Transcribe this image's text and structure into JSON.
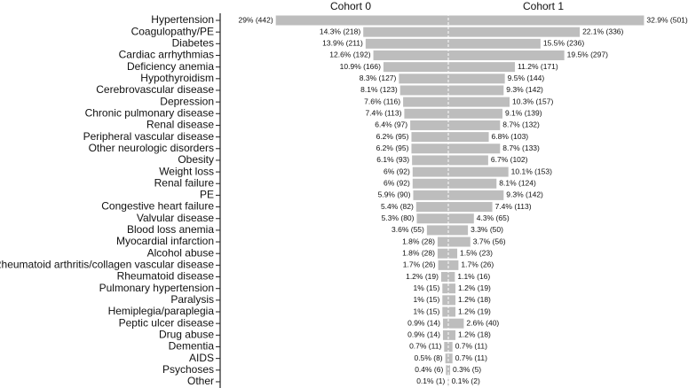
{
  "chart_data": {
    "type": "butterfly",
    "categories": [
      "Hypertension",
      "Coagulopathy/PE",
      "Diabetes",
      "Cardiac arrhythmias",
      "Deficiency anemia",
      "Hypothyroidism",
      "Cerebrovascular disease",
      "Depression",
      "Chronic pulmonary disease",
      "Renal disease",
      "Peripheral vascular disease",
      "Other neurologic disorders",
      "Obesity",
      "Weight loss",
      "Renal failure",
      "PE",
      "Congestive heart failure",
      "Valvular disease",
      "Blood loss anemia",
      "Myocardial infarction",
      "Alcohol abuse",
      "Rheumatoid arthritis/collagen vascular disease",
      "Rheumatoid disease",
      "Pulmonary hypertension",
      "Paralysis",
      "Hemiplegia/paraplegia",
      "Peptic ulcer disease",
      "Drug abuse",
      "Dementia",
      "AIDS",
      "Psychoses",
      "Other"
    ],
    "series": [
      {
        "name": "Cohort 0",
        "color": "#bdbdbd",
        "values": [
          29,
          14.3,
          13.9,
          12.6,
          10.9,
          8.3,
          8.1,
          7.6,
          7.4,
          6.4,
          6.2,
          6.2,
          6.1,
          6,
          6,
          5.9,
          5.4,
          5.3,
          3.6,
          1.8,
          1.8,
          1.7,
          1.2,
          1,
          1,
          1,
          0.9,
          0.9,
          0.7,
          0.5,
          0.4,
          0.1
        ],
        "value_labels": [
          "29% (442)",
          "14.3% (218)",
          "13.9% (211)",
          "12.6% (192)",
          "10.9% (166)",
          "8.3% (127)",
          "8.1% (123)",
          "7.6% (116)",
          "7.4% (113)",
          "6.4% (97)",
          "6.2% (95)",
          "6.2% (95)",
          "6.1% (93)",
          "6% (92)",
          "6% (92)",
          "5.9% (90)",
          "5.4% (82)",
          "5.3% (80)",
          "3.6% (55)",
          "1.8% (28)",
          "1.8% (28)",
          "1.7% (26)",
          "1.2% (19)",
          "1% (15)",
          "1% (15)",
          "1% (15)",
          "0.9% (14)",
          "0.9% (14)",
          "0.7% (11)",
          "0.5% (8)",
          "0.4% (6)",
          "0.1% (1)"
        ]
      },
      {
        "name": "Cohort 1",
        "color": "#bdbdbd",
        "values": [
          32.9,
          22.1,
          15.5,
          19.5,
          11.2,
          9.5,
          9.3,
          10.3,
          9.1,
          8.7,
          6.8,
          8.7,
          6.7,
          10.1,
          8.1,
          9.3,
          7.4,
          4.3,
          3.3,
          3.7,
          1.5,
          1.7,
          1.1,
          1.2,
          1.2,
          1.2,
          2.6,
          1.2,
          0.7,
          0.7,
          0.3,
          0.1
        ],
        "value_labels": [
          "32.9% (501)",
          "22.1% (336)",
          "15.5% (236)",
          "19.5% (297)",
          "11.2% (171)",
          "9.5% (144)",
          "9.3% (142)",
          "10.3% (157)",
          "9.1% (139)",
          "8.7% (132)",
          "6.8% (103)",
          "8.7% (133)",
          "6.7% (102)",
          "10.1% (153)",
          "8.1% (124)",
          "9.3% (142)",
          "7.4% (113)",
          "4.3% (65)",
          "3.3% (50)",
          "3.7% (56)",
          "1.5% (23)",
          "1.7% (26)",
          "1.1% (16)",
          "1.2% (19)",
          "1.2% (18)",
          "1.2% (19)",
          "2.6% (40)",
          "1.2% (18)",
          "0.7% (11)",
          "0.7% (11)",
          "0.3% (5)",
          "0.1% (2)"
        ]
      }
    ]
  }
}
